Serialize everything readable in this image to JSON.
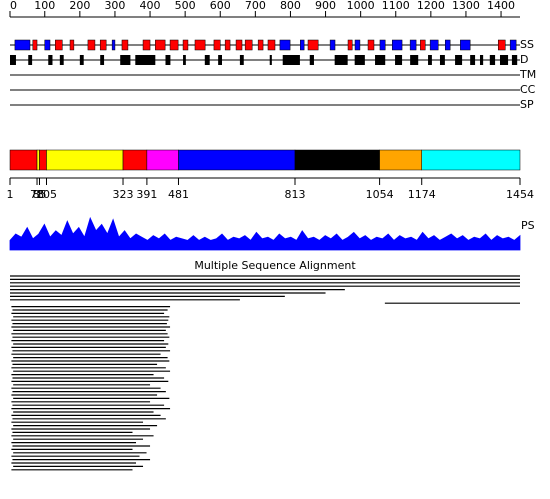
{
  "ruler": {
    "lim": [
      1,
      1454
    ],
    "ticks": [
      0,
      100,
      200,
      300,
      400,
      500,
      600,
      700,
      800,
      900,
      1000,
      1100,
      1200,
      1300,
      1400
    ]
  },
  "tracks": {
    "ss": "SS",
    "d": "D",
    "tm": "TM",
    "cc": "CC",
    "sp": "SP",
    "ps": "PS"
  },
  "ss_colors": {
    "H": "#ff0000",
    "E": "#0000ff"
  },
  "ss_segments": [
    [
      15,
      58,
      "E"
    ],
    [
      66,
      78,
      "H"
    ],
    [
      100,
      115,
      "E"
    ],
    [
      130,
      150,
      "H"
    ],
    [
      172,
      183,
      "H"
    ],
    [
      223,
      243,
      "H"
    ],
    [
      258,
      275,
      "H"
    ],
    [
      292,
      300,
      "E"
    ],
    [
      320,
      337,
      "H"
    ],
    [
      380,
      400,
      "H"
    ],
    [
      415,
      443,
      "H"
    ],
    [
      457,
      480,
      "H"
    ],
    [
      494,
      508,
      "H"
    ],
    [
      528,
      557,
      "H"
    ],
    [
      582,
      600,
      "H"
    ],
    [
      614,
      628,
      "H"
    ],
    [
      645,
      662,
      "H"
    ],
    [
      671,
      691,
      "H"
    ],
    [
      708,
      722,
      "H"
    ],
    [
      736,
      756,
      "H"
    ],
    [
      770,
      799,
      "E"
    ],
    [
      828,
      839,
      "E"
    ],
    [
      850,
      879,
      "H"
    ],
    [
      913,
      927,
      "E"
    ],
    [
      964,
      976,
      "H"
    ],
    [
      984,
      998,
      "E"
    ],
    [
      1021,
      1038,
      "H"
    ],
    [
      1055,
      1070,
      "E"
    ],
    [
      1090,
      1118,
      "E"
    ],
    [
      1141,
      1158,
      "E"
    ],
    [
      1170,
      1184,
      "H"
    ],
    [
      1198,
      1221,
      "E"
    ],
    [
      1241,
      1255,
      "E"
    ],
    [
      1284,
      1312,
      "E"
    ],
    [
      1392,
      1412,
      "H"
    ],
    [
      1426,
      1443,
      "E"
    ]
  ],
  "d_segments": [
    [
      1,
      18
    ],
    [
      53,
      64
    ],
    [
      110,
      122
    ],
    [
      143,
      154
    ],
    [
      200,
      211
    ],
    [
      258,
      269
    ],
    [
      315,
      344
    ],
    [
      358,
      415
    ],
    [
      444,
      458
    ],
    [
      494,
      502
    ],
    [
      556,
      570
    ],
    [
      594,
      605
    ],
    [
      656,
      667
    ],
    [
      741,
      747
    ],
    [
      778,
      827
    ],
    [
      855,
      867
    ],
    [
      926,
      963
    ],
    [
      983,
      1012
    ],
    [
      1041,
      1070
    ],
    [
      1098,
      1118
    ],
    [
      1141,
      1164
    ],
    [
      1192,
      1203
    ],
    [
      1226,
      1240
    ],
    [
      1269,
      1289
    ],
    [
      1312,
      1326
    ],
    [
      1340,
      1349
    ],
    [
      1368,
      1383
    ],
    [
      1397,
      1420
    ],
    [
      1431,
      1446
    ]
  ],
  "domains": {
    "boundaries": [
      1,
      78,
      85,
      105,
      323,
      391,
      481,
      813,
      1054,
      1174,
      1454
    ],
    "colors": [
      "#ff0000",
      "#ffff00",
      "#ff0000",
      "#ffff00",
      "#ff0000",
      "#ff00ff",
      "#0000ff",
      "#000000",
      "#ffa500",
      "#00ffff"
    ]
  },
  "ps_values": [
    0.3,
    0.5,
    0.4,
    0.7,
    0.35,
    0.5,
    0.8,
    0.4,
    0.6,
    0.45,
    0.9,
    0.5,
    0.7,
    0.4,
    1.0,
    0.6,
    0.8,
    0.5,
    0.95,
    0.4,
    0.6,
    0.35,
    0.5,
    0.4,
    0.3,
    0.45,
    0.35,
    0.5,
    0.3,
    0.4,
    0.35,
    0.3,
    0.45,
    0.3,
    0.4,
    0.3,
    0.35,
    0.5,
    0.3,
    0.4,
    0.35,
    0.45,
    0.3,
    0.55,
    0.35,
    0.4,
    0.3,
    0.5,
    0.35,
    0.4,
    0.3,
    0.6,
    0.35,
    0.4,
    0.3,
    0.45,
    0.35,
    0.5,
    0.3,
    0.4,
    0.55,
    0.35,
    0.45,
    0.3,
    0.4,
    0.35,
    0.5,
    0.3,
    0.45,
    0.35,
    0.4,
    0.3,
    0.55,
    0.35,
    0.45,
    0.3,
    0.4,
    0.5,
    0.35,
    0.45,
    0.3,
    0.4,
    0.35,
    0.5,
    0.3,
    0.45,
    0.35,
    0.4,
    0.3,
    0.45
  ],
  "msa": {
    "title": "Multiple Sequence Alignment",
    "rows": [
      [
        [
          1,
          1454
        ]
      ],
      [
        [
          1,
          1454
        ]
      ],
      [
        [
          1,
          1454
        ]
      ],
      [
        [
          1,
          1454
        ]
      ],
      [
        [
          1,
          955
        ]
      ],
      [
        [
          1,
          900
        ]
      ],
      [
        [
          1,
          784
        ]
      ],
      [
        [
          1,
          656
        ]
      ],
      [
        [
          1069,
          1454
        ]
      ],
      [
        [
          5,
          457
        ]
      ],
      [
        [
          8,
          450
        ]
      ],
      [
        [
          5,
          440
        ]
      ],
      [
        [
          10,
          455
        ]
      ],
      [
        [
          5,
          452
        ]
      ],
      [
        [
          8,
          448
        ]
      ],
      [
        [
          5,
          457
        ]
      ],
      [
        [
          10,
          445
        ]
      ],
      [
        [
          5,
          450
        ]
      ],
      [
        [
          8,
          455
        ]
      ],
      [
        [
          5,
          440
        ]
      ],
      [
        [
          10,
          452
        ]
      ],
      [
        [
          5,
          445
        ]
      ],
      [
        [
          8,
          457
        ]
      ],
      [
        [
          5,
          430
        ]
      ],
      [
        [
          10,
          450
        ]
      ],
      [
        [
          5,
          455
        ]
      ],
      [
        [
          8,
          420
        ]
      ],
      [
        [
          5,
          445
        ]
      ],
      [
        [
          10,
          457
        ]
      ],
      [
        [
          5,
          410
        ]
      ],
      [
        [
          8,
          440
        ]
      ],
      [
        [
          5,
          452
        ]
      ],
      [
        [
          10,
          400
        ]
      ],
      [
        [
          5,
          430
        ]
      ],
      [
        [
          8,
          445
        ]
      ],
      [
        [
          5,
          420
        ]
      ],
      [
        [
          10,
          455
        ]
      ],
      [
        [
          5,
          400
        ]
      ],
      [
        [
          8,
          440
        ]
      ],
      [
        [
          5,
          457
        ]
      ],
      [
        [
          10,
          410
        ]
      ],
      [
        [
          5,
          430
        ]
      ],
      [
        [
          8,
          445
        ]
      ],
      [
        [
          5,
          380
        ]
      ],
      [
        [
          10,
          420
        ]
      ],
      [
        [
          5,
          400
        ]
      ],
      [
        [
          8,
          350
        ]
      ],
      [
        [
          5,
          410
        ]
      ],
      [
        [
          10,
          380
        ]
      ],
      [
        [
          5,
          360
        ]
      ],
      [
        [
          8,
          400
        ]
      ],
      [
        [
          5,
          350
        ]
      ],
      [
        [
          10,
          390
        ]
      ],
      [
        [
          5,
          370
        ]
      ],
      [
        [
          8,
          400
        ]
      ],
      [
        [
          5,
          360
        ]
      ],
      [
        [
          10,
          380
        ]
      ],
      [
        [
          5,
          350
        ]
      ]
    ]
  }
}
